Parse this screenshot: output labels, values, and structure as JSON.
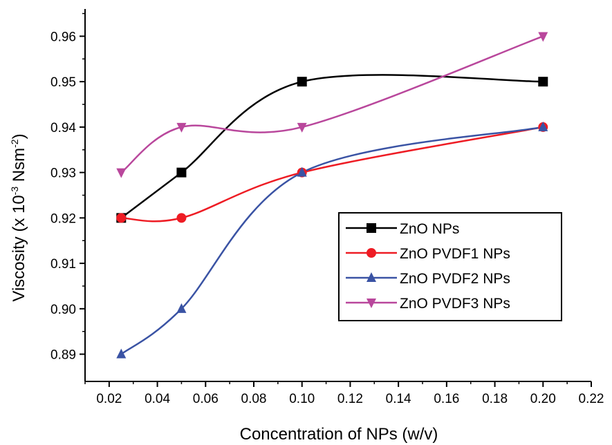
{
  "chart_data": {
    "type": "line",
    "xlabel": "Concentration of NPs (w/v)",
    "ylabel_main": "Viscosity (x 10",
    "ylabel_exp": "-3",
    "ylabel_unit": " Nsm",
    "ylabel_unit_exp": "-2",
    "ylabel_close": ")",
    "xlim": [
      0.01,
      0.22
    ],
    "ylim": [
      0.884,
      0.966
    ],
    "xticks": [
      0.02,
      0.04,
      0.06,
      0.08,
      0.1,
      0.12,
      0.14,
      0.16,
      0.18,
      0.2,
      0.22
    ],
    "xtick_labels": [
      "0.02",
      "0.04",
      "0.06",
      "0.08",
      "0.10",
      "0.12",
      "0.14",
      "0.16",
      "0.18",
      "0.20",
      "0.22"
    ],
    "yticks": [
      0.89,
      0.9,
      0.91,
      0.92,
      0.93,
      0.94,
      0.95,
      0.96
    ],
    "ytick_labels": [
      "0.89",
      "0.90",
      "0.91",
      "0.92",
      "0.93",
      "0.94",
      "0.95",
      "0.96"
    ],
    "x": [
      0.025,
      0.05,
      0.1,
      0.2
    ],
    "series": [
      {
        "name": "ZnO NPs",
        "color": "#000000",
        "marker": "square",
        "values": [
          0.92,
          0.93,
          0.95,
          0.95
        ]
      },
      {
        "name": "ZnO PVDF1 NPs",
        "color": "#ee1c24",
        "marker": "circle",
        "values": [
          0.92,
          0.92,
          0.93,
          0.94
        ]
      },
      {
        "name": "ZnO PVDF2 NPs",
        "color": "#3a53a4",
        "marker": "triangle-up",
        "values": [
          0.89,
          0.9,
          0.93,
          0.94
        ]
      },
      {
        "name": "ZnO PVDF3 NPs",
        "color": "#b9479c",
        "marker": "triangle-down",
        "values": [
          0.93,
          0.94,
          0.94,
          0.96
        ]
      }
    ],
    "legend_position": "center-right",
    "grid": false
  }
}
